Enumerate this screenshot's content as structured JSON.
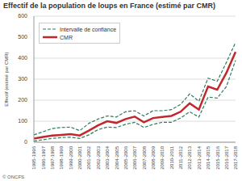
{
  "chart_data": {
    "type": "line",
    "title": "Effectif de la population de loups en France (estimé par CMR)",
    "y_label": "Effectif (estimé par CMR)",
    "source": "© ONCFS",
    "categories": [
      "1995-1996",
      "1996-1997",
      "1997-1998",
      "1998-1999",
      "1999-2000",
      "2000-2001",
      "2001-2002",
      "2002-2003",
      "2003-2004",
      "2004-2005",
      "2005-2006",
      "2006-2007",
      "2007-2008",
      "2008-2009",
      "2009-2010",
      "2010-2011",
      "2011-2012",
      "2012-2013",
      "2013-2014",
      "2014-2015",
      "2015-2016",
      "2016-2017",
      "2017-2018"
    ],
    "series": [
      {
        "name": "CMR",
        "color": "#c0282d",
        "line_style": "solid",
        "values": [
          17,
          25,
          32,
          35,
          38,
          32,
          55,
          80,
          100,
          92,
          110,
          122,
          95,
          115,
          120,
          125,
          145,
          185,
          155,
          265,
          250,
          330,
          430
        ]
      }
    ],
    "confidence_interval": {
      "name": "Intervalle de confiance",
      "color": "#2f7d5a",
      "line_style": "dashed",
      "lower": [
        5,
        12,
        18,
        22,
        24,
        18,
        35,
        60,
        72,
        70,
        85,
        95,
        70,
        85,
        95,
        95,
        115,
        145,
        120,
        215,
        210,
        265,
        390
      ],
      "upper": [
        35,
        50,
        65,
        70,
        72,
        55,
        90,
        110,
        125,
        120,
        145,
        150,
        125,
        150,
        150,
        155,
        180,
        230,
        195,
        305,
        290,
        380,
        475
      ]
    },
    "ylim": [
      0,
      600
    ],
    "yticks": [
      0,
      100,
      200,
      300,
      400,
      500,
      600
    ],
    "grid": true,
    "legend": "upper left"
  }
}
